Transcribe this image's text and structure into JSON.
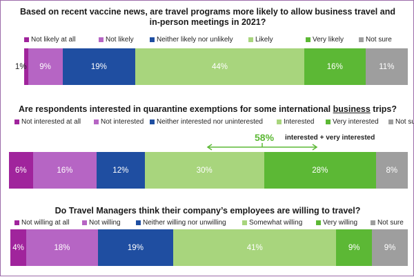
{
  "colors": {
    "c1": "#a0249c",
    "c2": "#b665c4",
    "c3": "#1f4ea1",
    "c4": "#a8d57d",
    "c5": "#5cb835",
    "c6": "#9e9e9e",
    "frame": "#9b6aa8"
  },
  "chart_data": [
    {
      "type": "bar",
      "title": "Based on recent vaccine news, are travel programs more likely to allow business travel and in-person meetings in 2021?",
      "categories": [
        "Not likely at all",
        "Not likely",
        "Neither likely nor unlikely",
        "Likely",
        "Very likely",
        "Not sure"
      ],
      "values": [
        1,
        9,
        19,
        44,
        16,
        11
      ],
      "labels": [
        "1%",
        "9%",
        "19%",
        "44%",
        "16%",
        "11%"
      ],
      "stacked": true,
      "orientation": "horizontal"
    },
    {
      "type": "bar",
      "title_pre": "Are respondents interested in quarantine exemptions for some international ",
      "title_u": "business",
      "title_post": " trips?",
      "categories": [
        "Not interested at all",
        "Not interested",
        "Neither interested nor uninterested",
        "Interested",
        "Very interested",
        "Not sure"
      ],
      "values": [
        6,
        16,
        12,
        30,
        28,
        8
      ],
      "labels": [
        "6%",
        "16%",
        "12%",
        "30%",
        "28%",
        "8%"
      ],
      "stacked": true,
      "orientation": "horizontal",
      "annotation_value": "58%",
      "annotation_text": "interested + very interested"
    },
    {
      "type": "bar",
      "title": "Do Travel Managers think their company’s employees are willing to travel?",
      "categories": [
        "Not willing at all",
        "Not willing",
        "Neither willing nor unwilling",
        "Somewhat willing",
        "Very willing",
        "Not sure"
      ],
      "values": [
        4,
        18,
        19,
        41,
        9,
        9
      ],
      "labels": [
        "4%",
        "18%",
        "19%",
        "41%",
        "9%",
        "9%"
      ],
      "stacked": true,
      "orientation": "horizontal"
    }
  ]
}
